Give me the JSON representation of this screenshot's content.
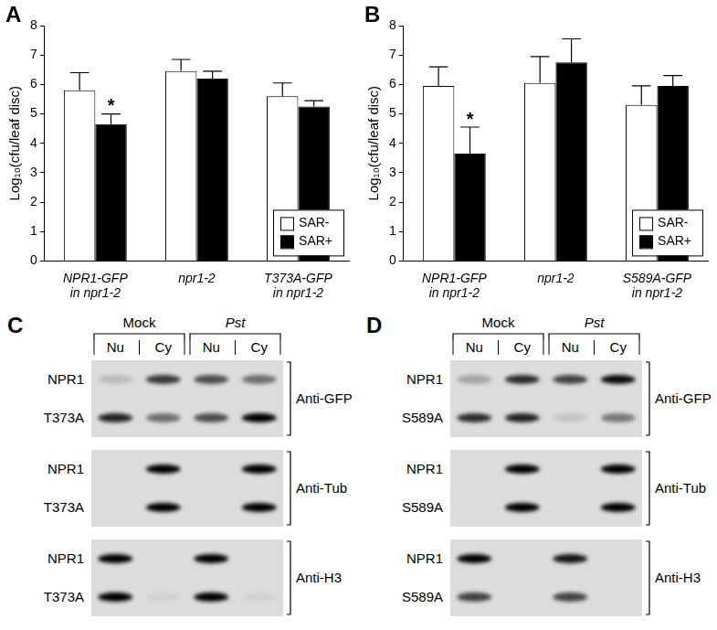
{
  "chart_data": [
    {
      "type": "bar",
      "panel": "A",
      "y_label": "Log₁₀(cfu/leaf disc)",
      "categories": [
        [
          "NPR1-GFP",
          "in npr1-2"
        ],
        "npr1-2",
        [
          "T373A-GFP",
          "in npr1-2"
        ]
      ],
      "series": [
        {
          "name": "SAR-",
          "color": "#ffffff",
          "values": [
            5.8,
            6.45,
            5.6
          ],
          "errors": [
            0.6,
            0.4,
            0.45
          ]
        },
        {
          "name": "SAR+",
          "color": "#000000",
          "values": [
            4.65,
            6.2,
            5.25
          ],
          "errors": [
            0.35,
            0.25,
            0.2
          ]
        }
      ],
      "annotations": [
        {
          "category": 0,
          "series": "SAR+",
          "text": "*"
        }
      ],
      "ylim": [
        0,
        8
      ],
      "yticks": [
        0,
        1,
        2,
        3,
        4,
        5,
        6,
        7,
        8
      ],
      "grid": false,
      "legend": "lower right"
    },
    {
      "type": "bar",
      "panel": "B",
      "y_label": "Log₁₀(cfu/leaf disc)",
      "categories": [
        [
          "NPR1-GFP",
          "in npr1-2"
        ],
        "npr1-2",
        [
          "S589A-GFP",
          "in npr1-2"
        ]
      ],
      "series": [
        {
          "name": "SAR-",
          "color": "#ffffff",
          "values": [
            5.95,
            6.05,
            5.3
          ],
          "errors": [
            0.65,
            0.9,
            0.65
          ]
        },
        {
          "name": "SAR+",
          "color": "#000000",
          "values": [
            3.65,
            6.75,
            5.95
          ],
          "errors": [
            0.9,
            0.8,
            0.35
          ]
        }
      ],
      "annotations": [
        {
          "category": 0,
          "series": "SAR+",
          "text": "*"
        }
      ],
      "ylim": [
        0,
        8
      ],
      "yticks": [
        0,
        1,
        2,
        3,
        4,
        5,
        6,
        7,
        8
      ],
      "grid": false,
      "legend": "lower right"
    }
  ],
  "blots": [
    {
      "panel": "C",
      "conditions": [
        {
          "label": "Mock",
          "italic": false,
          "lanes": [
            "Nu",
            "Cy"
          ]
        },
        {
          "label": "Pst",
          "italic": true,
          "lanes": [
            "Nu",
            "Cy"
          ]
        }
      ],
      "groups": [
        {
          "antibody": "Anti-GFP",
          "rows": [
            {
              "label": "NPR1",
              "intensity": [
                0.15,
                0.75,
                0.65,
                0.5
              ]
            },
            {
              "label": "T373A",
              "intensity": [
                0.85,
                0.5,
                0.65,
                1.0
              ]
            }
          ]
        },
        {
          "antibody": "Anti-Tub",
          "rows": [
            {
              "label": "NPR1",
              "intensity": [
                0,
                1,
                0,
                1
              ]
            },
            {
              "label": "T373A",
              "intensity": [
                0,
                1,
                0,
                1
              ]
            }
          ]
        },
        {
          "antibody": "Anti-H3",
          "rows": [
            {
              "label": "NPR1",
              "intensity": [
                1,
                0,
                1,
                0
              ]
            },
            {
              "label": "T373A",
              "intensity": [
                1,
                0.05,
                1,
                0.05
              ]
            }
          ]
        }
      ]
    },
    {
      "panel": "D",
      "conditions": [
        {
          "label": "Mock",
          "italic": false,
          "lanes": [
            "Nu",
            "Cy"
          ]
        },
        {
          "label": "Pst",
          "italic": true,
          "lanes": [
            "Nu",
            "Cy"
          ]
        }
      ],
      "groups": [
        {
          "antibody": "Anti-GFP",
          "rows": [
            {
              "label": "NPR1",
              "intensity": [
                0.25,
                0.8,
                0.7,
                0.95
              ]
            },
            {
              "label": "S589A",
              "intensity": [
                0.8,
                0.85,
                0.1,
                0.45
              ]
            }
          ]
        },
        {
          "antibody": "Anti-Tub",
          "rows": [
            {
              "label": "NPR1",
              "intensity": [
                0,
                1,
                0,
                1
              ]
            },
            {
              "label": "S589A",
              "intensity": [
                0,
                1,
                0,
                1
              ]
            }
          ]
        },
        {
          "antibody": "Anti-H3",
          "rows": [
            {
              "label": "NPR1",
              "intensity": [
                1,
                0,
                0.9,
                0
              ]
            },
            {
              "label": "S589A",
              "intensity": [
                0.7,
                0,
                0.7,
                0
              ]
            }
          ]
        }
      ]
    }
  ]
}
